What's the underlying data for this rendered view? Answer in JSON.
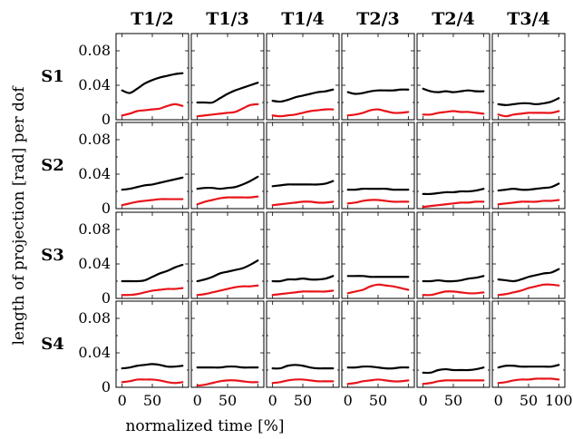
{
  "chart_data": {
    "type": "line",
    "layout": "small-multiples grid (4 rows × 6 columns)",
    "columns": [
      "T1/2",
      "T1/3",
      "T1/4",
      "T2/3",
      "T2/4",
      "T3/4"
    ],
    "rows": [
      "S1",
      "S2",
      "S3",
      "S4"
    ],
    "xlabel": "normalized time [%]",
    "ylabel": "length of projection [rad] per dof",
    "xlim": [
      -10,
      110
    ],
    "ylim": [
      0,
      0.1
    ],
    "x_ticks": [
      0,
      50,
      100
    ],
    "x_tick_labels_per_column": [
      [
        "0",
        "50"
      ],
      [
        "0",
        "50"
      ],
      [
        "0",
        "50"
      ],
      [
        "0",
        "50"
      ],
      [
        "0",
        "50"
      ],
      [
        "0",
        "50",
        "100"
      ]
    ],
    "y_ticks": [
      0,
      0.04,
      0.08
    ],
    "y_tick_labels": [
      "0",
      "0.04",
      "0.08"
    ],
    "grid": false,
    "legend": "none",
    "series_colors": {
      "black": "#000000",
      "red": "#e8141a"
    },
    "x": [
      0,
      12.5,
      25,
      37.5,
      50,
      62.5,
      75,
      87.5,
      100
    ],
    "panels": [
      {
        "row": "S1",
        "col": "T1/2",
        "black": [
          0.034,
          0.031,
          0.036,
          0.042,
          0.046,
          0.049,
          0.051,
          0.053,
          0.054
        ],
        "red": [
          0.005,
          0.007,
          0.01,
          0.011,
          0.012,
          0.013,
          0.016,
          0.018,
          0.016
        ]
      },
      {
        "row": "S1",
        "col": "T1/3",
        "black": [
          0.02,
          0.02,
          0.02,
          0.025,
          0.03,
          0.034,
          0.037,
          0.04,
          0.043
        ],
        "red": [
          0.004,
          0.005,
          0.006,
          0.007,
          0.008,
          0.009,
          0.013,
          0.017,
          0.018
        ]
      },
      {
        "row": "S1",
        "col": "T1/4",
        "black": [
          0.022,
          0.021,
          0.023,
          0.026,
          0.028,
          0.03,
          0.032,
          0.033,
          0.035
        ],
        "red": [
          0.005,
          0.004,
          0.005,
          0.006,
          0.008,
          0.01,
          0.011,
          0.012,
          0.012
        ]
      },
      {
        "row": "S1",
        "col": "T2/3",
        "black": [
          0.032,
          0.03,
          0.031,
          0.033,
          0.034,
          0.034,
          0.034,
          0.035,
          0.035
        ],
        "red": [
          0.005,
          0.006,
          0.008,
          0.011,
          0.012,
          0.01,
          0.008,
          0.008,
          0.009
        ]
      },
      {
        "row": "S1",
        "col": "T2/4",
        "black": [
          0.036,
          0.033,
          0.032,
          0.033,
          0.032,
          0.033,
          0.034,
          0.033,
          0.033
        ],
        "red": [
          0.006,
          0.006,
          0.008,
          0.009,
          0.01,
          0.009,
          0.009,
          0.008,
          0.007
        ]
      },
      {
        "row": "S1",
        "col": "T3/4",
        "black": [
          0.018,
          0.017,
          0.018,
          0.019,
          0.019,
          0.018,
          0.019,
          0.021,
          0.025
        ],
        "red": [
          0.006,
          0.004,
          0.006,
          0.007,
          0.008,
          0.008,
          0.008,
          0.008,
          0.01
        ]
      },
      {
        "row": "S2",
        "col": "T1/2",
        "black": [
          0.022,
          0.023,
          0.025,
          0.027,
          0.028,
          0.03,
          0.032,
          0.034,
          0.036
        ],
        "red": [
          0.004,
          0.006,
          0.008,
          0.009,
          0.01,
          0.011,
          0.011,
          0.011,
          0.011
        ]
      },
      {
        "row": "S2",
        "col": "T1/3",
        "black": [
          0.023,
          0.024,
          0.024,
          0.023,
          0.024,
          0.025,
          0.028,
          0.032,
          0.037
        ],
        "red": [
          0.005,
          0.008,
          0.01,
          0.012,
          0.013,
          0.013,
          0.013,
          0.013,
          0.014
        ]
      },
      {
        "row": "S2",
        "col": "T1/4",
        "black": [
          0.026,
          0.027,
          0.028,
          0.028,
          0.028,
          0.028,
          0.028,
          0.029,
          0.032
        ],
        "red": [
          0.004,
          0.005,
          0.006,
          0.007,
          0.008,
          0.008,
          0.007,
          0.007,
          0.008
        ]
      },
      {
        "row": "S2",
        "col": "T2/3",
        "black": [
          0.022,
          0.022,
          0.023,
          0.023,
          0.023,
          0.023,
          0.022,
          0.022,
          0.022
        ],
        "red": [
          0.006,
          0.007,
          0.009,
          0.01,
          0.01,
          0.009,
          0.008,
          0.008,
          0.008
        ]
      },
      {
        "row": "S2",
        "col": "T2/4",
        "black": [
          0.017,
          0.017,
          0.018,
          0.019,
          0.019,
          0.02,
          0.02,
          0.021,
          0.023
        ],
        "red": [
          0.002,
          0.003,
          0.004,
          0.005,
          0.006,
          0.007,
          0.007,
          0.008,
          0.008
        ]
      },
      {
        "row": "S2",
        "col": "T3/4",
        "black": [
          0.021,
          0.022,
          0.023,
          0.022,
          0.022,
          0.023,
          0.024,
          0.025,
          0.029
        ],
        "red": [
          0.005,
          0.006,
          0.007,
          0.008,
          0.008,
          0.008,
          0.009,
          0.009,
          0.01
        ]
      },
      {
        "row": "S3",
        "col": "T1/2",
        "black": [
          0.02,
          0.02,
          0.02,
          0.021,
          0.025,
          0.029,
          0.032,
          0.036,
          0.039
        ],
        "red": [
          0.004,
          0.004,
          0.005,
          0.007,
          0.009,
          0.01,
          0.011,
          0.011,
          0.012
        ]
      },
      {
        "row": "S3",
        "col": "T1/3",
        "black": [
          0.02,
          0.022,
          0.025,
          0.029,
          0.031,
          0.033,
          0.035,
          0.039,
          0.044
        ],
        "red": [
          0.004,
          0.005,
          0.007,
          0.009,
          0.011,
          0.013,
          0.014,
          0.014,
          0.015
        ]
      },
      {
        "row": "S3",
        "col": "T1/4",
        "black": [
          0.02,
          0.02,
          0.022,
          0.022,
          0.023,
          0.022,
          0.022,
          0.023,
          0.026
        ],
        "red": [
          0.004,
          0.005,
          0.006,
          0.007,
          0.008,
          0.008,
          0.008,
          0.008,
          0.009
        ]
      },
      {
        "row": "S3",
        "col": "T2/3",
        "black": [
          0.026,
          0.026,
          0.026,
          0.025,
          0.025,
          0.025,
          0.025,
          0.025,
          0.025
        ],
        "red": [
          0.006,
          0.008,
          0.01,
          0.014,
          0.016,
          0.015,
          0.014,
          0.012,
          0.01
        ]
      },
      {
        "row": "S3",
        "col": "T2/4",
        "black": [
          0.02,
          0.02,
          0.021,
          0.02,
          0.02,
          0.021,
          0.023,
          0.024,
          0.026
        ],
        "red": [
          0.004,
          0.004,
          0.006,
          0.008,
          0.008,
          0.007,
          0.006,
          0.006,
          0.007
        ]
      },
      {
        "row": "S3",
        "col": "T3/4",
        "black": [
          0.022,
          0.021,
          0.02,
          0.022,
          0.025,
          0.027,
          0.029,
          0.03,
          0.034
        ],
        "red": [
          0.004,
          0.005,
          0.007,
          0.009,
          0.012,
          0.014,
          0.016,
          0.016,
          0.015
        ]
      },
      {
        "row": "S4",
        "col": "T1/2",
        "black": [
          0.022,
          0.023,
          0.025,
          0.026,
          0.027,
          0.026,
          0.024,
          0.024,
          0.025
        ],
        "red": [
          0.006,
          0.007,
          0.009,
          0.009,
          0.009,
          0.008,
          0.006,
          0.005,
          0.006
        ]
      },
      {
        "row": "S4",
        "col": "T1/3",
        "black": [
          0.023,
          0.023,
          0.023,
          0.023,
          0.024,
          0.024,
          0.023,
          0.023,
          0.023
        ],
        "red": [
          0.002,
          0.003,
          0.005,
          0.007,
          0.008,
          0.008,
          0.007,
          0.006,
          0.006
        ]
      },
      {
        "row": "S4",
        "col": "T1/4",
        "black": [
          0.022,
          0.022,
          0.025,
          0.026,
          0.025,
          0.023,
          0.022,
          0.022,
          0.022
        ],
        "red": [
          0.005,
          0.006,
          0.008,
          0.009,
          0.009,
          0.008,
          0.007,
          0.007,
          0.007
        ]
      },
      {
        "row": "S4",
        "col": "T2/3",
        "black": [
          0.023,
          0.023,
          0.024,
          0.024,
          0.023,
          0.022,
          0.022,
          0.023,
          0.023
        ],
        "red": [
          0.004,
          0.005,
          0.007,
          0.008,
          0.009,
          0.008,
          0.007,
          0.007,
          0.008
        ]
      },
      {
        "row": "S4",
        "col": "T2/4",
        "black": [
          0.017,
          0.017,
          0.02,
          0.021,
          0.02,
          0.02,
          0.02,
          0.021,
          0.023
        ],
        "red": [
          0.004,
          0.005,
          0.007,
          0.008,
          0.008,
          0.008,
          0.008,
          0.008,
          0.008
        ]
      },
      {
        "row": "S4",
        "col": "T3/4",
        "black": [
          0.023,
          0.025,
          0.025,
          0.024,
          0.024,
          0.024,
          0.024,
          0.024,
          0.026
        ],
        "red": [
          0.005,
          0.006,
          0.008,
          0.009,
          0.009,
          0.01,
          0.01,
          0.01,
          0.009
        ]
      }
    ]
  }
}
